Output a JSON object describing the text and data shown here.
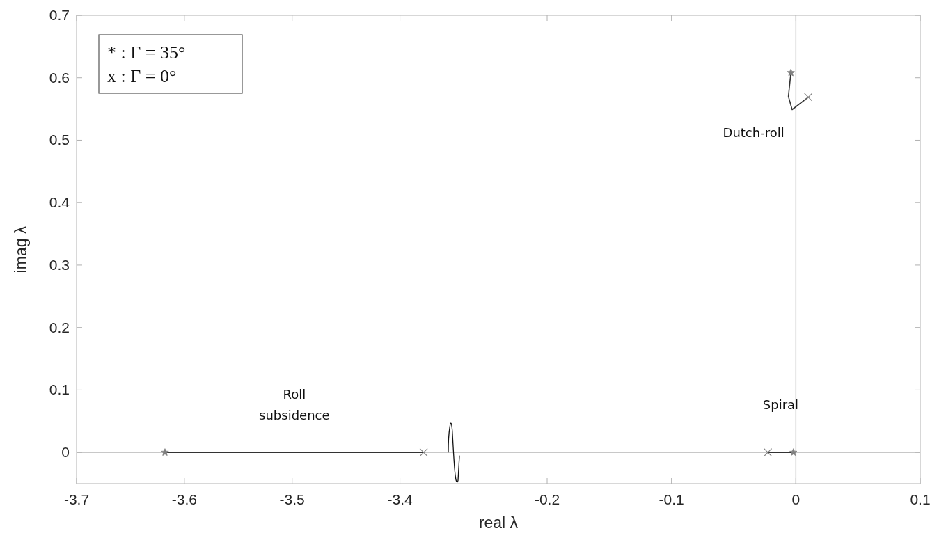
{
  "chart_data": [
    {
      "type": "line",
      "xlabel": "real λ",
      "ylabel": "imag λ",
      "xlim": [
        -3.7,
        -3.35
      ],
      "xticks": [
        -3.7,
        -3.6,
        -3.5,
        -3.4
      ],
      "ylim": [
        -0.05,
        0.7
      ],
      "yticks": [
        0,
        0.1,
        0.2,
        0.3,
        0.4,
        0.5,
        0.6,
        0.7
      ],
      "grid": false,
      "ref_lines": [
        {
          "axis": "y",
          "value": 0,
          "color": "#c8c8c8"
        }
      ],
      "series": [
        {
          "x": [
            -3.618,
            -3.378
          ],
          "values": [
            0,
            0
          ],
          "color": "#333333"
        },
        {
          "type": "scatter",
          "x": [
            -3.618
          ],
          "values": [
            0
          ],
          "color": "#808080",
          "marker": "star"
        },
        {
          "type": "scatter",
          "x": [
            -3.378
          ],
          "values": [
            0
          ],
          "color": "#808080",
          "marker": "cross"
        }
      ],
      "annotations": [
        "* : Γ = 35°",
        "x : Γ = 0°",
        "Roll subsidence"
      ]
    },
    {
      "type": "line",
      "xlim": [
        -0.275,
        0.1
      ],
      "xticks": [
        -0.2,
        -0.1,
        0,
        0.1
      ],
      "ylim": [
        -0.05,
        0.7
      ],
      "yticks": [
        0,
        0.1,
        0.2,
        0.3,
        0.4,
        0.5,
        0.6,
        0.7
      ],
      "tick_labels": "x",
      "grid": false,
      "ref_lines": [
        {
          "axis": "y",
          "value": 0,
          "color": "#c8c8c8"
        },
        {
          "axis": "x",
          "value": 0,
          "color": "#c8c8c8"
        }
      ],
      "series": [
        {
          "x": [
            -0.0225,
            -0.002
          ],
          "values": [
            0,
            0
          ],
          "color": "#333333"
        },
        {
          "x": [
            -0.004,
            -0.006,
            -0.003,
            0.01
          ],
          "values": [
            0.608,
            0.57,
            0.549,
            0.569
          ],
          "color": "#333333"
        },
        {
          "type": "scatter",
          "x": [
            -0.002,
            -0.004
          ],
          "values": [
            0,
            0.608
          ],
          "color": "#808080",
          "marker": "star"
        },
        {
          "type": "scatter",
          "x": [
            -0.0225,
            0.01
          ],
          "values": [
            0,
            0.569
          ],
          "color": "#808080",
          "marker": "cross"
        }
      ],
      "annotations": [
        "Spiral",
        "Dutch-roll"
      ]
    }
  ]
}
